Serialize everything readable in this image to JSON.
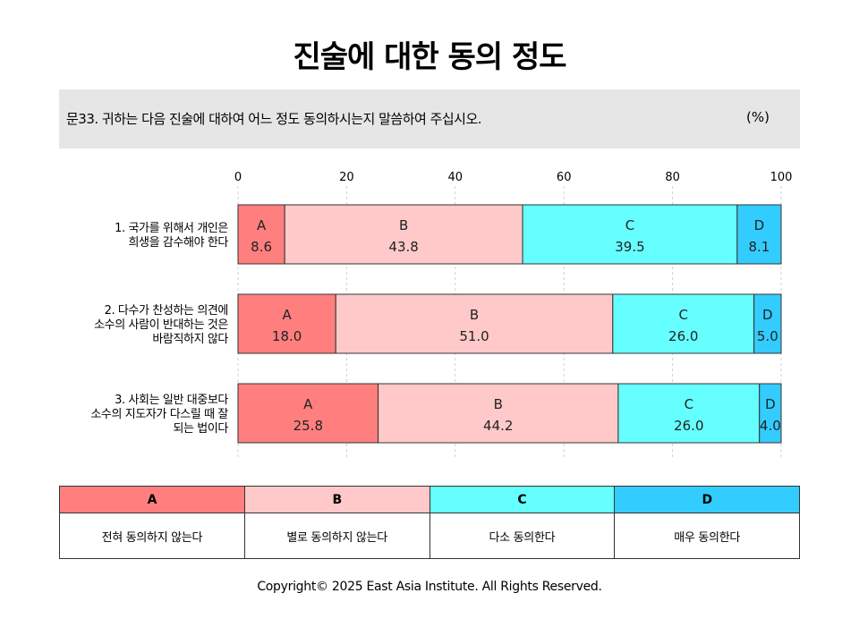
{
  "title": "진술에 대한 동의 정도",
  "question": "문33. 귀하는 다음 진술에 대하여 어느 정도 동의하시는지 말씀하여 주십시오.",
  "unit": "(%)",
  "legend": [
    {
      "key": "A",
      "label": "전혀 동의하지 않는다",
      "color": "#ff7f7f"
    },
    {
      "key": "B",
      "label": "별로 동의하지 않는다",
      "color": "#ffc9c9"
    },
    {
      "key": "C",
      "label": "다소 동의한다",
      "color": "#66ffff"
    },
    {
      "key": "D",
      "label": "매우 동의한다",
      "color": "#33ccff"
    }
  ],
  "copyright": "Copyright© 2025 East Asia Institute. All Rights Reserved.",
  "chart_data": {
    "type": "bar",
    "orientation": "horizontal",
    "stacked": true,
    "xlim": [
      0,
      100
    ],
    "xticks": [
      "0",
      "20",
      "40",
      "60",
      "80",
      "100"
    ],
    "grid": true,
    "categories": [
      [
        "1. 국가를 위해서 개인은",
        "희생을 감수해야 한다"
      ],
      [
        "2. 다수가 찬성하는 의견에",
        "소수의 사람이 반대하는 것은",
        "바람직하지 않다"
      ],
      [
        "3. 사회는 일반 대중보다",
        "소수의 지도자가 다스릴 때 잘",
        "되는 법이다"
      ]
    ],
    "series": [
      {
        "name": "A",
        "values": [
          8.6,
          18.0,
          25.8
        ],
        "labels": [
          "8.6",
          "18.0",
          "25.8"
        ]
      },
      {
        "name": "B",
        "values": [
          43.8,
          51.0,
          44.2
        ],
        "labels": [
          "43.8",
          "51.0",
          "44.2"
        ]
      },
      {
        "name": "C",
        "values": [
          39.5,
          26.0,
          26.0
        ],
        "labels": [
          "39.5",
          "26.0",
          "26.0"
        ]
      },
      {
        "name": "D",
        "values": [
          8.1,
          5.0,
          4.0
        ],
        "labels": [
          "8.1",
          "5.0",
          "4.0"
        ]
      }
    ]
  }
}
